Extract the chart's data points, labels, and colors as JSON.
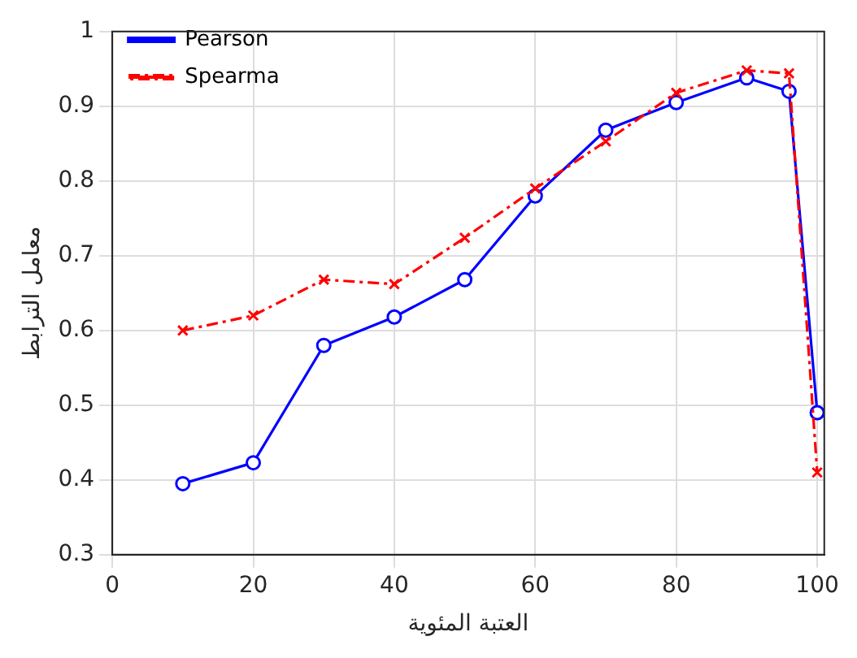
{
  "chart_data": {
    "type": "line",
    "xlabel": "العتبة المئوية",
    "ylabel": "معامل الترابط",
    "xlim": [
      0,
      101
    ],
    "xticks": [
      0,
      20,
      40,
      60,
      80,
      100
    ],
    "ylim": [
      0.3,
      1
    ],
    "yticks": [
      0.3,
      0.4,
      0.5,
      0.6,
      0.7,
      0.8,
      0.9,
      1
    ],
    "grid": true,
    "legend": "top left",
    "series": [
      {
        "name": "Pearson",
        "color": "#0000ff",
        "marker": "circle",
        "line_style": "solid",
        "x": [
          10,
          20,
          30,
          40,
          50,
          60,
          70,
          80,
          90,
          96,
          100
        ],
        "values": [
          0.395,
          0.423,
          0.58,
          0.618,
          0.668,
          0.78,
          0.868,
          0.905,
          0.938,
          0.92,
          0.49
        ]
      },
      {
        "name": "Spearma",
        "color": "#ff0000",
        "marker": "cross",
        "line_style": "dashed",
        "x": [
          10,
          20,
          30,
          40,
          50,
          60,
          70,
          80,
          90,
          96,
          100
        ],
        "values": [
          0.6,
          0.62,
          0.668,
          0.662,
          0.724,
          0.79,
          0.853,
          0.918,
          0.948,
          0.944,
          0.41
        ]
      }
    ]
  }
}
